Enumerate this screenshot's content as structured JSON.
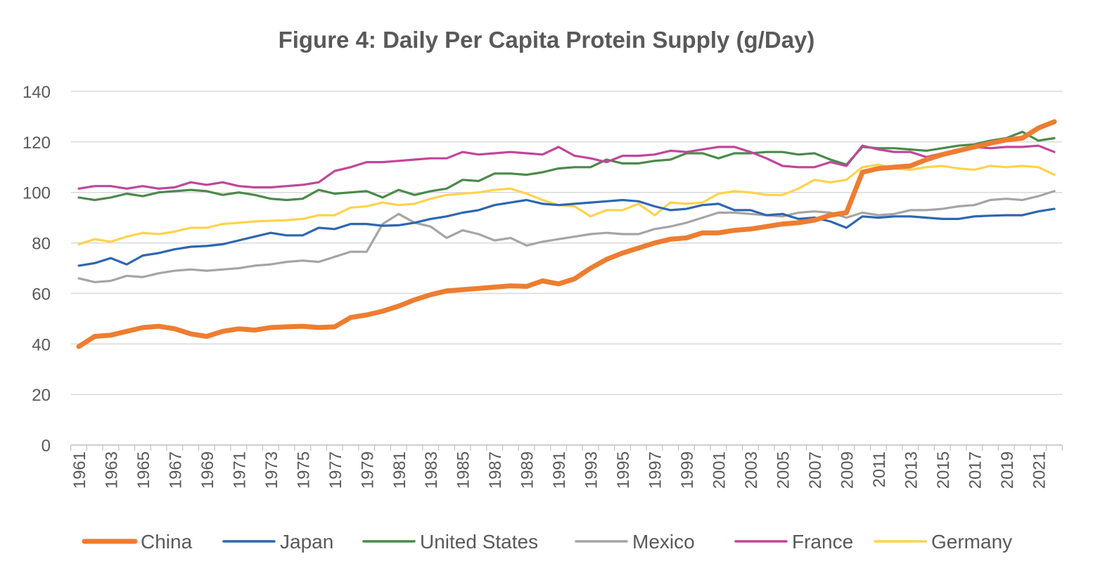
{
  "chart_data": {
    "type": "line",
    "title": "Figure 4: Daily Per Capita Protein Supply (g/Day)",
    "xlabel": "",
    "ylabel": "",
    "ylim": [
      0,
      140
    ],
    "yticks": [
      0,
      20,
      40,
      60,
      80,
      100,
      120,
      140
    ],
    "grid": true,
    "legend": "bottom",
    "x": [
      1961,
      1962,
      1963,
      1964,
      1965,
      1966,
      1967,
      1968,
      1969,
      1970,
      1971,
      1972,
      1973,
      1974,
      1975,
      1976,
      1977,
      1978,
      1979,
      1980,
      1981,
      1982,
      1983,
      1984,
      1985,
      1986,
      1987,
      1988,
      1989,
      1990,
      1991,
      1992,
      1993,
      1994,
      1995,
      1996,
      1997,
      1998,
      1999,
      2000,
      2001,
      2002,
      2003,
      2004,
      2005,
      2006,
      2007,
      2008,
      2009,
      2010,
      2011,
      2012,
      2013,
      2014,
      2015,
      2016,
      2017,
      2018,
      2019,
      2020,
      2021,
      2022
    ],
    "x_tick_labels": [
      "1961",
      "1963",
      "1965",
      "1967",
      "1969",
      "1971",
      "1973",
      "1975",
      "1977",
      "1979",
      "1981",
      "1983",
      "1985",
      "1987",
      "1989",
      "1991",
      "1993",
      "1995",
      "1997",
      "1999",
      "2001",
      "2003",
      "2005",
      "2007",
      "2009",
      "2011",
      "2013",
      "2015",
      "2017",
      "2019",
      "2021"
    ],
    "series": [
      {
        "name": "China",
        "color": "#ED7D31",
        "values": [
          39,
          43,
          43.5,
          45,
          46.5,
          47,
          46,
          44,
          43,
          45,
          46,
          45.5,
          46.5,
          46.8,
          47,
          46.5,
          46.8,
          50.5,
          51.5,
          53,
          55,
          57.5,
          59.5,
          61,
          61.5,
          62,
          62.5,
          63,
          62.8,
          65,
          63.8,
          65.8,
          70,
          73.5,
          76,
          78,
          80,
          81.5,
          82,
          84,
          84,
          85,
          85.5,
          86.5,
          87.5,
          88,
          89,
          91,
          92,
          108,
          109.5,
          110,
          110.5,
          113,
          115,
          116.5,
          118,
          119.5,
          120.8,
          121.5,
          125.5,
          128
        ]
      },
      {
        "name": "Japan",
        "color": "#2E66B0",
        "values": [
          71,
          72,
          74,
          71.5,
          75,
          76,
          77.5,
          78.5,
          78.8,
          79.5,
          81,
          82.5,
          84,
          83,
          83,
          86,
          85.5,
          87.5,
          87.5,
          86.8,
          87,
          88,
          89.5,
          90.5,
          92,
          93,
          95,
          96,
          97,
          95.5,
          95,
          95.5,
          96,
          96.5,
          97,
          96.5,
          94.5,
          93,
          93.5,
          95,
          95.5,
          93,
          93,
          91,
          91.5,
          89.5,
          90,
          88.5,
          86,
          90.5,
          90,
          90.5,
          90.5,
          90,
          89.5,
          89.5,
          90.5,
          90.8,
          91,
          91,
          92.5,
          93.5
        ]
      },
      {
        "name": "United States",
        "color": "#4A8A4A",
        "values": [
          98,
          97,
          98,
          99.5,
          98.5,
          100,
          100.5,
          101,
          100.5,
          99,
          100,
          99,
          97.5,
          97,
          97.5,
          101,
          99.5,
          100,
          100.5,
          98,
          101,
          99,
          100.5,
          101.5,
          105,
          104.5,
          107.5,
          107.5,
          107,
          108,
          109.5,
          110,
          110,
          113,
          111.5,
          111.5,
          112.5,
          113,
          115.5,
          115.5,
          113.5,
          115.5,
          115.5,
          116,
          116,
          115,
          115.5,
          113,
          111,
          118,
          117.5,
          117.5,
          117,
          116.5,
          117.5,
          118.5,
          119,
          120.5,
          121.5,
          124,
          120.5,
          121.5
        ]
      },
      {
        "name": "Mexico",
        "color": "#A5A5A5",
        "values": [
          66,
          64.5,
          65,
          67,
          66.5,
          68,
          69,
          69.5,
          69,
          69.5,
          70,
          71,
          71.5,
          72.5,
          73,
          72.5,
          74.5,
          76.5,
          76.5,
          87.5,
          91.5,
          88,
          86.5,
          82,
          85,
          83.5,
          81,
          82,
          79,
          80.5,
          81.5,
          82.5,
          83.5,
          84,
          83.5,
          83.5,
          85.5,
          86.5,
          88,
          90,
          92,
          92,
          91.5,
          91,
          90.5,
          92,
          92.5,
          92,
          90,
          92,
          91,
          91.5,
          93,
          93,
          93.5,
          94.5,
          95,
          97,
          97.5,
          97,
          98.5,
          100.5
        ]
      },
      {
        "name": "France",
        "color": "#C0469B",
        "values": [
          101.5,
          102.5,
          102.5,
          101.5,
          102.5,
          101.5,
          102,
          104,
          103,
          104,
          102.5,
          102,
          102,
          102.5,
          103,
          104,
          108.5,
          110,
          112,
          112,
          112.5,
          113,
          113.5,
          113.5,
          116,
          115,
          115.5,
          116,
          115.5,
          115,
          118,
          114.5,
          113.5,
          112,
          114.5,
          114.5,
          115,
          116.5,
          116,
          117,
          118,
          118,
          116,
          113.5,
          110.5,
          110,
          110,
          112,
          110.5,
          118.5,
          117,
          116,
          116,
          114,
          115.5,
          116.5,
          118,
          117.5,
          118,
          118,
          118.5,
          116
        ]
      },
      {
        "name": "Germany",
        "color": "#FFD24D",
        "values": [
          79.5,
          81.5,
          80.5,
          82.5,
          84,
          83.5,
          84.5,
          86,
          86,
          87.5,
          88,
          88.5,
          88.8,
          89,
          89.5,
          91,
          91,
          94,
          94.5,
          96,
          95,
          95.5,
          97.5,
          99,
          99.5,
          100,
          101,
          101.5,
          99.5,
          97,
          95,
          94.5,
          90.5,
          93,
          93,
          95.5,
          91,
          96,
          95.5,
          96,
          99.5,
          100.5,
          100,
          99,
          99,
          101.5,
          105,
          104,
          105,
          110,
          111,
          109.5,
          109,
          110,
          110.5,
          109.5,
          109,
          110.5,
          110,
          110.5,
          110,
          107
        ]
      }
    ]
  }
}
